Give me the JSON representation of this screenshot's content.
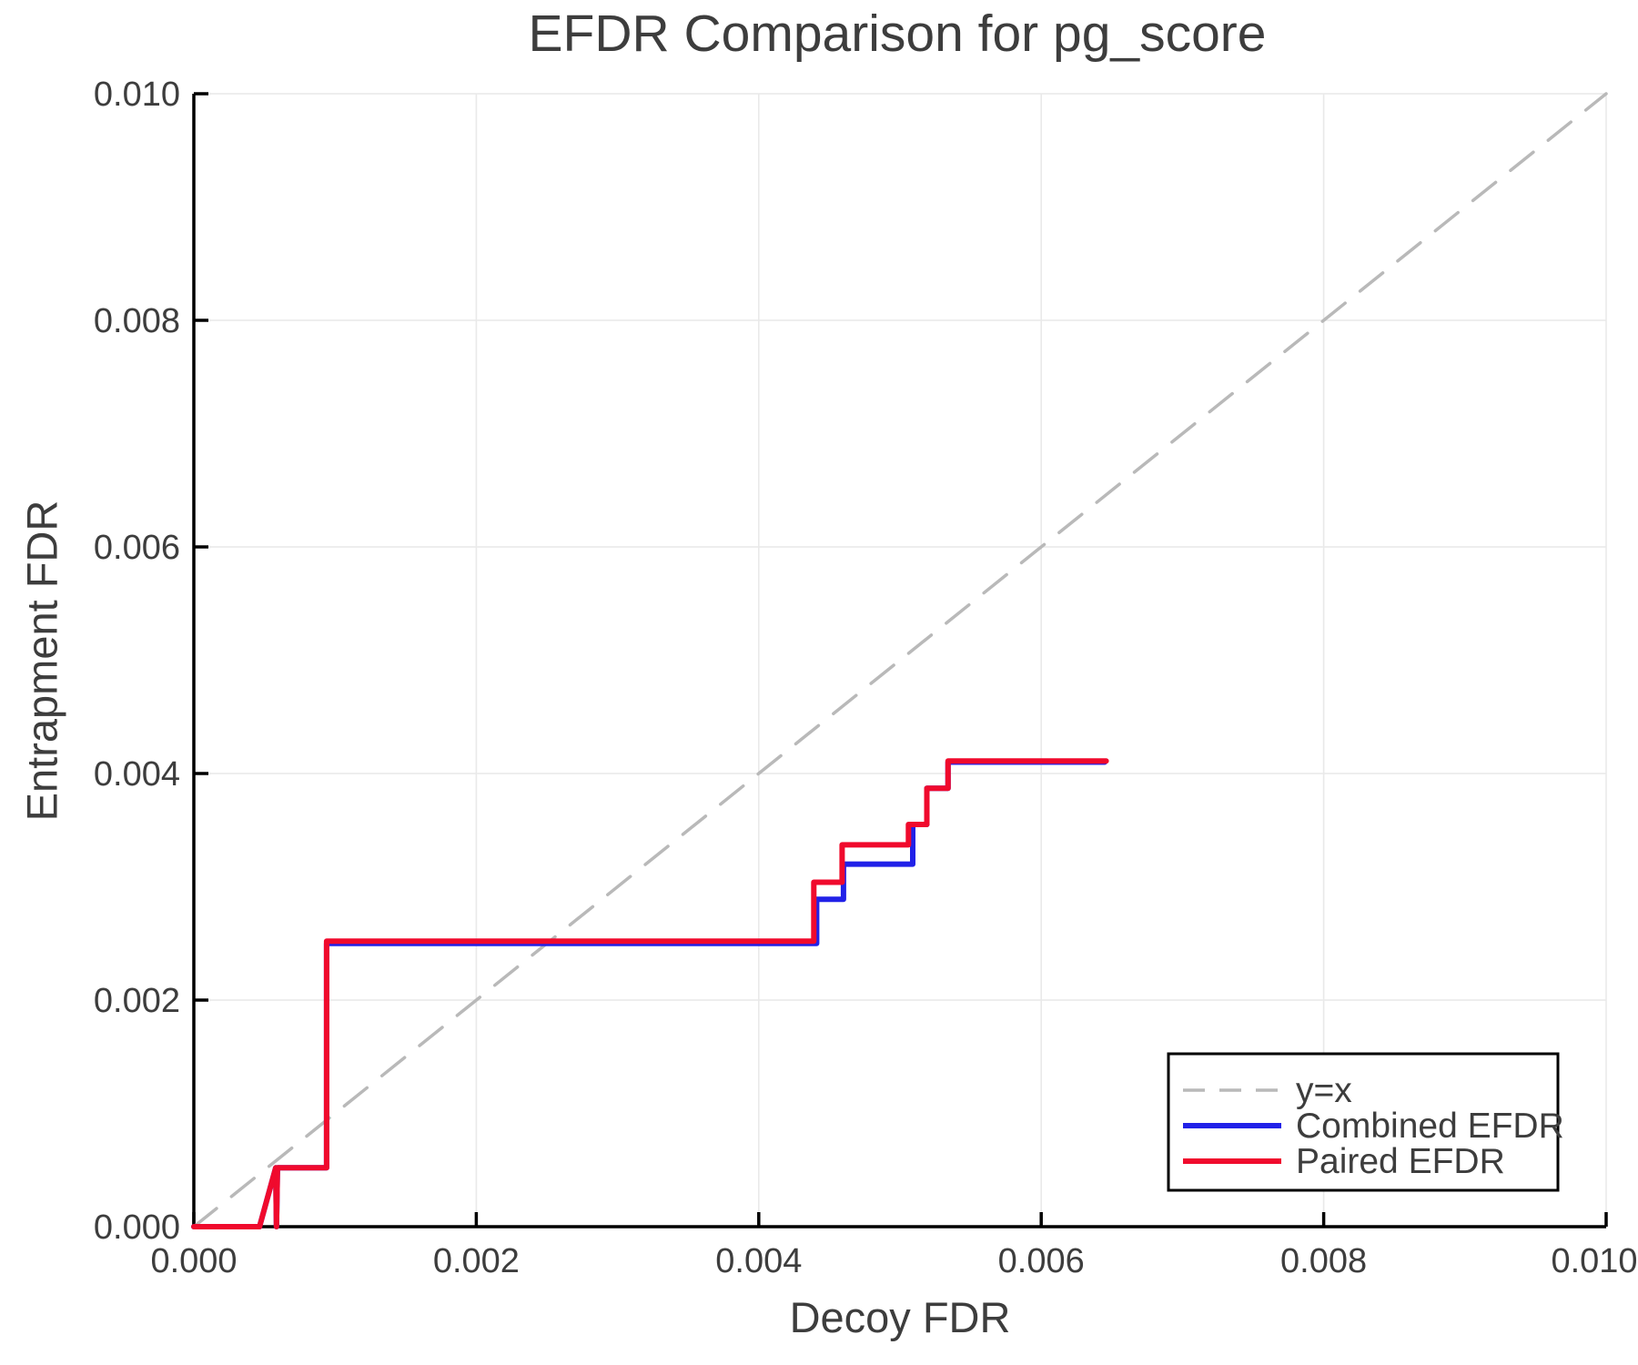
{
  "chart_data": {
    "type": "line",
    "title": "EFDR Comparison for pg_score",
    "xlabel": "Decoy FDR",
    "ylabel": "Entrapment FDR",
    "xlim": [
      0.0,
      0.01
    ],
    "ylim": [
      0.0,
      0.01
    ],
    "grid": {
      "show": true,
      "color": "#e9e9e9"
    },
    "axes": {
      "spine_color": "#000000",
      "tick_color": "#000000",
      "tick_label_color": "#3d3d3d",
      "title_color": "#3d3d3d"
    },
    "xticks": {
      "values": [
        0.0,
        0.002,
        0.004,
        0.006,
        0.008,
        0.01
      ],
      "labels": [
        "0.000",
        "0.002",
        "0.004",
        "0.006",
        "0.008",
        "0.010"
      ]
    },
    "yticks": {
      "values": [
        0.0,
        0.002,
        0.004,
        0.006,
        0.008,
        0.01
      ],
      "labels": [
        "0.000",
        "0.002",
        "0.004",
        "0.006",
        "0.008",
        "0.010"
      ]
    },
    "legend": {
      "position": "lower-right",
      "border_color": "#000000",
      "background": "#ffffff",
      "entries": [
        {
          "label": "y=x",
          "color": "#b9b9b9",
          "dashed": true
        },
        {
          "label": "Combined EFDR",
          "color": "#2121e8",
          "dashed": false
        },
        {
          "label": "Paired EFDR",
          "color": "#f00a2d",
          "dashed": false
        }
      ]
    },
    "series": [
      {
        "name": "y=x",
        "color": "#b9b9b9",
        "style": "dashed",
        "width": 3.5,
        "points": [
          [
            0.0,
            0.0
          ],
          [
            0.01,
            0.01
          ]
        ]
      },
      {
        "name": "Combined EFDR",
        "color": "#2121e8",
        "style": "solid",
        "width": 6,
        "points": [
          [
            0.0,
            0.0
          ],
          [
            0.000465,
            0.0
          ],
          [
            0.00058,
            0.00052
          ],
          [
            0.000585,
            0.0
          ],
          [
            0.000592,
            0.00052
          ],
          [
            0.00094,
            0.00052
          ],
          [
            0.00094,
            0.0025
          ],
          [
            0.00441,
            0.0025
          ],
          [
            0.00441,
            0.00289
          ],
          [
            0.0046,
            0.00289
          ],
          [
            0.0046,
            0.0032
          ],
          [
            0.00509,
            0.0032
          ],
          [
            0.00509,
            0.00355
          ],
          [
            0.00519,
            0.00355
          ],
          [
            0.00519,
            0.00387
          ],
          [
            0.00534,
            0.00387
          ],
          [
            0.00534,
            0.0041
          ],
          [
            0.00645,
            0.0041
          ]
        ]
      },
      {
        "name": "Paired EFDR",
        "color": "#f00a2d",
        "style": "solid",
        "width": 6,
        "points": [
          [
            0.0,
            0.0
          ],
          [
            0.000465,
            0.0
          ],
          [
            0.00058,
            0.00052
          ],
          [
            0.000585,
            0.0
          ],
          [
            0.000592,
            0.00052
          ],
          [
            0.00094,
            0.00052
          ],
          [
            0.00094,
            0.00252
          ],
          [
            0.00439,
            0.00252
          ],
          [
            0.00439,
            0.00304
          ],
          [
            0.00459,
            0.00304
          ],
          [
            0.00459,
            0.00337
          ],
          [
            0.00506,
            0.00337
          ],
          [
            0.00506,
            0.00355
          ],
          [
            0.00519,
            0.00355
          ],
          [
            0.00519,
            0.00387
          ],
          [
            0.00534,
            0.00387
          ],
          [
            0.00534,
            0.00411
          ],
          [
            0.00646,
            0.00411
          ]
        ]
      }
    ]
  }
}
